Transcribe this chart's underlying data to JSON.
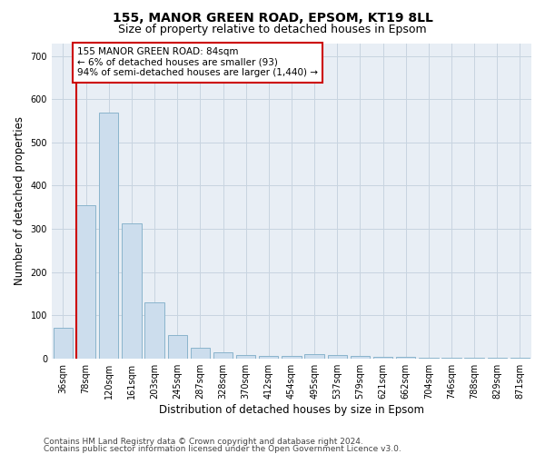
{
  "title1": "155, MANOR GREEN ROAD, EPSOM, KT19 8LL",
  "title2": "Size of property relative to detached houses in Epsom",
  "xlabel": "Distribution of detached houses by size in Epsom",
  "ylabel": "Number of detached properties",
  "bar_labels": [
    "36sqm",
    "78sqm",
    "120sqm",
    "161sqm",
    "203sqm",
    "245sqm",
    "287sqm",
    "328sqm",
    "370sqm",
    "412sqm",
    "454sqm",
    "495sqm",
    "537sqm",
    "579sqm",
    "621sqm",
    "662sqm",
    "704sqm",
    "746sqm",
    "788sqm",
    "829sqm",
    "871sqm"
  ],
  "bar_values": [
    70,
    355,
    570,
    313,
    130,
    55,
    25,
    15,
    8,
    6,
    5,
    10,
    8,
    5,
    4,
    3,
    2,
    1,
    1,
    1,
    1
  ],
  "bar_color": "#ccdded",
  "bar_edgecolor": "#8ab4cc",
  "annotation_box_text": "155 MANOR GREEN ROAD: 84sqm\n← 6% of detached houses are smaller (93)\n94% of semi-detached houses are larger (1,440) →",
  "box_color": "#ffffff",
  "box_edgecolor": "#cc0000",
  "vline_color": "#cc0000",
  "vline_bar_index": 1,
  "ylim": [
    0,
    730
  ],
  "yticks": [
    0,
    100,
    200,
    300,
    400,
    500,
    600,
    700
  ],
  "footer1": "Contains HM Land Registry data © Crown copyright and database right 2024.",
  "footer2": "Contains public sector information licensed under the Open Government Licence v3.0.",
  "bg_color": "#ffffff",
  "plot_bg_color": "#e8eef5",
  "grid_color": "#c8d4e0",
  "title1_fontsize": 10,
  "title2_fontsize": 9,
  "tick_fontsize": 7,
  "label_fontsize": 8.5,
  "footer_fontsize": 6.5,
  "annot_fontsize": 7.5
}
